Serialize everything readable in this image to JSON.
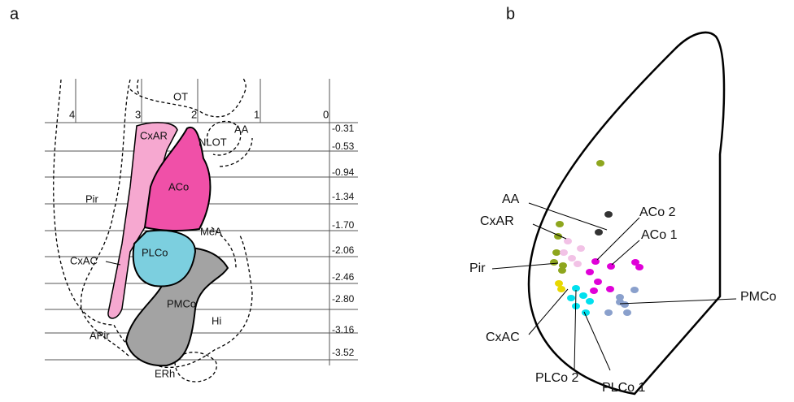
{
  "panels": {
    "a": {
      "label": "a",
      "columns": [
        "4",
        "3",
        "2",
        "1",
        "0"
      ],
      "levels": [
        "-0.31",
        "-0.53",
        "-0.94",
        "-1.34",
        "-1.70",
        "-2.06",
        "-2.46",
        "-2.80",
        "-3.16",
        "-3.52"
      ],
      "regions": [
        "OT",
        "AA",
        "NLOT",
        "CxAR",
        "ACo",
        "Pir",
        "MeA",
        "PLCo",
        "CxAC",
        "PMCo",
        "Hi",
        "APir",
        "ERh"
      ]
    },
    "b": {
      "label": "b",
      "annotations": [
        "AA",
        "CxAR",
        "ACo 2",
        "ACo 1",
        "Pir",
        "PMCo",
        "CxAC",
        "PLCo 2",
        "PLCo 1"
      ]
    }
  }
}
